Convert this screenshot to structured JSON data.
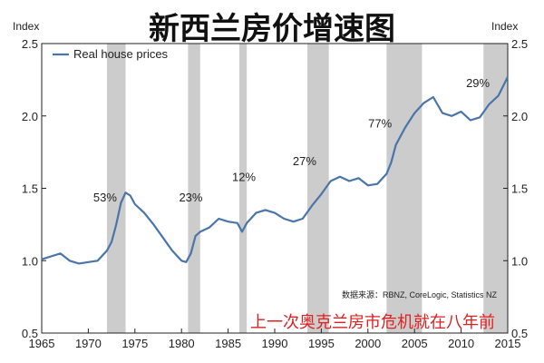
{
  "chart_data": {
    "type": "line",
    "title": "新西兰房价增速图",
    "ylabel_left": "Index",
    "ylabel_right": "Index",
    "ylim": [
      0.5,
      2.5
    ],
    "xlim": [
      1965,
      2015
    ],
    "yticks": [
      "0.5",
      "1.0",
      "1.5",
      "2.0",
      "2.5"
    ],
    "xticks": [
      "1965",
      "1970",
      "1975",
      "1980",
      "1985",
      "1990",
      "1995",
      "2000",
      "2005",
      "2010",
      "2015"
    ],
    "grid": false,
    "legend_position": "top-left",
    "line_color": "#4a75a8",
    "band_color": "#cccccc",
    "series": [
      {
        "name": "Real house prices",
        "x": [
          1965,
          1966,
          1967,
          1968,
          1969,
          1970,
          1971,
          1972,
          1972.5,
          1973,
          1973.5,
          1974,
          1974.5,
          1975,
          1976,
          1977,
          1978,
          1979,
          1980,
          1980.5,
          1981,
          1981.5,
          1982,
          1983,
          1984,
          1985,
          1986,
          1986.5,
          1987,
          1988,
          1989,
          1990,
          1991,
          1992,
          1993,
          1994,
          1995,
          1996,
          1997,
          1998,
          1999,
          2000,
          2001,
          2002,
          2002.5,
          2003,
          2004,
          2005,
          2006,
          2007,
          2008,
          2009,
          2010,
          2011,
          2012,
          2013,
          2014,
          2015
        ],
        "y": [
          1.01,
          1.03,
          1.05,
          1.0,
          0.98,
          0.99,
          1.0,
          1.07,
          1.13,
          1.25,
          1.4,
          1.47,
          1.45,
          1.39,
          1.33,
          1.25,
          1.16,
          1.07,
          1.0,
          0.99,
          1.05,
          1.17,
          1.2,
          1.23,
          1.29,
          1.27,
          1.26,
          1.2,
          1.26,
          1.33,
          1.35,
          1.33,
          1.29,
          1.27,
          1.29,
          1.38,
          1.46,
          1.55,
          1.58,
          1.55,
          1.57,
          1.52,
          1.53,
          1.6,
          1.68,
          1.8,
          1.92,
          2.02,
          2.09,
          2.13,
          2.02,
          2.0,
          2.03,
          1.97,
          1.99,
          2.08,
          2.14,
          2.27
        ]
      }
    ],
    "recession_bands": [
      [
        1972,
        1974
      ],
      [
        1980.7,
        1982
      ],
      [
        1986.2,
        1987
      ],
      [
        1993.5,
        1995.8
      ],
      [
        2002,
        2005.8
      ],
      [
        2012.4,
        2015
      ]
    ],
    "annotations": [
      {
        "text": "53%",
        "x": 1971.8,
        "y": 1.41
      },
      {
        "text": "23%",
        "x": 1981,
        "y": 1.41
      },
      {
        "text": "12%",
        "x": 1986.7,
        "y": 1.55
      },
      {
        "text": "27%",
        "x": 1993.2,
        "y": 1.66
      },
      {
        "text": "77%",
        "x": 2001.3,
        "y": 1.92
      },
      {
        "text": "29%",
        "x": 2011.8,
        "y": 2.2
      }
    ],
    "source_note": "数据来源：RBNZ, CoreLogic, Statistics NZ",
    "highlight_note": "上一次奥克兰房市危机就在八年前"
  }
}
